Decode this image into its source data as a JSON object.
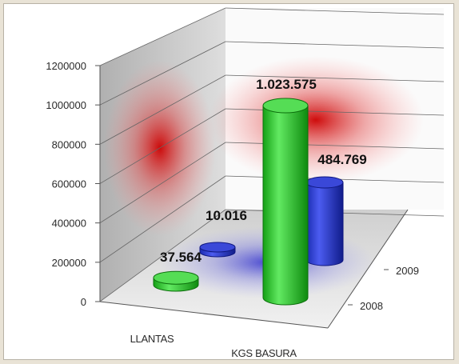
{
  "chart_data": {
    "type": "bar",
    "style": "3d-cylinder",
    "categories": [
      "LLANTAS",
      "KGS BASURA"
    ],
    "series": [
      {
        "name": "2008",
        "values": [
          37564,
          1023575
        ],
        "color": "#22c422"
      },
      {
        "name": "2009",
        "values": [
          10016,
          484769
        ],
        "color": "#2233cc"
      }
    ],
    "data_labels": [
      {
        "series": "2008",
        "category": "LLANTAS",
        "text": "37.564"
      },
      {
        "series": "2008",
        "category": "KGS BASURA",
        "text": "1.023.575"
      },
      {
        "series": "2009",
        "category": "LLANTAS",
        "text": "10.016"
      },
      {
        "series": "2009",
        "category": "KGS BASURA",
        "text": "484.769"
      }
    ],
    "y_ticks": [
      "0",
      "200000",
      "400000",
      "600000",
      "800000",
      "1000000",
      "1200000"
    ],
    "ylim": [
      0,
      1200000
    ],
    "depth_labels": [
      "2008",
      "2009"
    ],
    "grid": true,
    "title": "",
    "xlabel": "",
    "ylabel": "",
    "colors": {
      "wall_glow": "#cc0000",
      "floor_glow": "#2222cc",
      "series_2008": "#22c422",
      "series_2009": "#2233cc"
    }
  }
}
